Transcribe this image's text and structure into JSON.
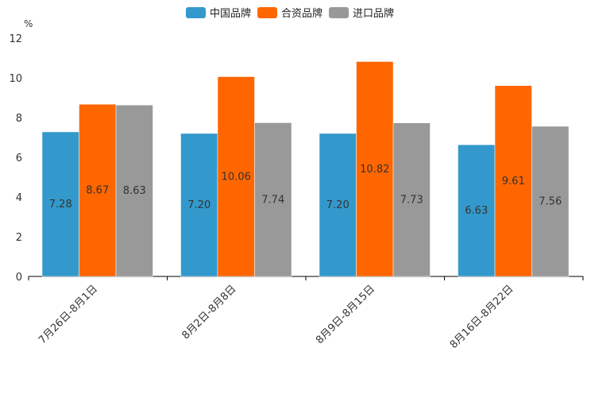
{
  "chart_data": {
    "type": "bar",
    "ylabel": "%",
    "ylim": [
      0,
      12
    ],
    "yticks": [
      0,
      2,
      4,
      6,
      8,
      10,
      12
    ],
    "legend_position": "top-center",
    "grid": false,
    "categories": [
      "7月26日-8月1日",
      "8月2日-8月8日",
      "8月9日-8月15日",
      "8月16日-8月22日"
    ],
    "series": [
      {
        "name": "中国品牌",
        "color": "#3399cc",
        "values": [
          7.28,
          7.2,
          7.2,
          6.63
        ],
        "labels": [
          "7.28",
          "7.20",
          "7.20",
          "6.63"
        ]
      },
      {
        "name": "合资品牌",
        "color": "#ff6600",
        "values": [
          8.67,
          10.06,
          10.82,
          9.61
        ],
        "labels": [
          "8.67",
          "10.06",
          "10.82",
          "9.61"
        ]
      },
      {
        "name": "进口品牌",
        "color": "#999999",
        "values": [
          8.63,
          7.74,
          7.73,
          7.56
        ],
        "labels": [
          "8.63",
          "7.74",
          "7.73",
          "7.56"
        ]
      }
    ]
  }
}
